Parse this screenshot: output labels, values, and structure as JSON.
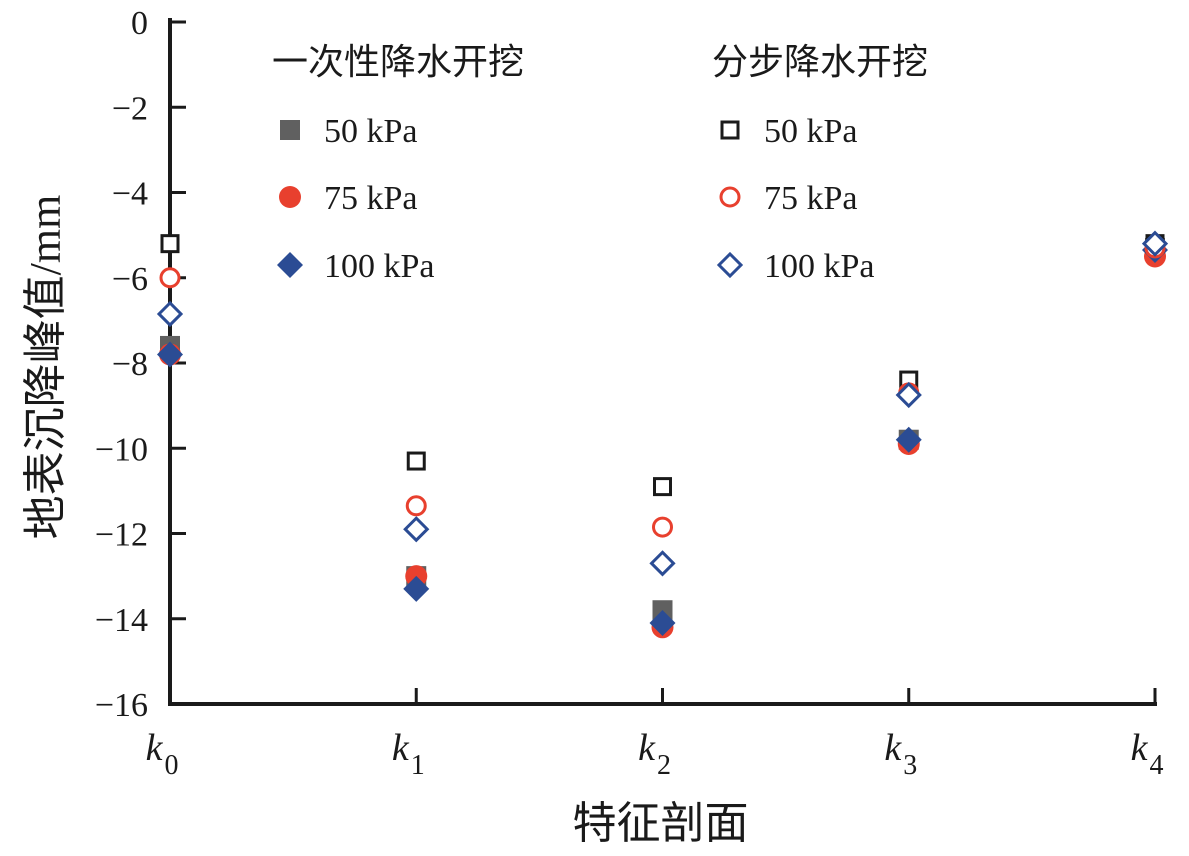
{
  "chart_data": {
    "type": "scatter",
    "title": "",
    "xlabel": "特征剖面",
    "ylabel": "地表沉降峰值/mm",
    "categories": [
      {
        "base": "k",
        "sub": "0"
      },
      {
        "base": "k",
        "sub": "1"
      },
      {
        "base": "k",
        "sub": "2"
      },
      {
        "base": "k",
        "sub": "3"
      },
      {
        "base": "k",
        "sub": "4"
      }
    ],
    "ylim": [
      -16,
      0
    ],
    "yticks": [
      0,
      -2,
      -4,
      -6,
      -8,
      -10,
      -12,
      -14,
      -16
    ],
    "ytick_labels": [
      "0",
      "−2",
      "−4",
      "−6",
      "−8",
      "−10",
      "−12",
      "−14",
      "−16"
    ],
    "grid": false,
    "legend": {
      "placement": "top",
      "groups": [
        {
          "title": "一次性降水开挖",
          "fill": "solid"
        },
        {
          "title": "分步降水开挖",
          "fill": "hollow"
        }
      ]
    },
    "series": [
      {
        "name": "50 kPa",
        "group": 0,
        "marker": "square",
        "color": "#606060",
        "fill": "solid",
        "values": [
          -7.6,
          -13.0,
          -13.8,
          -9.8,
          -5.3
        ]
      },
      {
        "name": "75 kPa",
        "group": 0,
        "marker": "circle",
        "color": "#e8402e",
        "fill": "solid",
        "values": [
          -7.8,
          -13.0,
          -14.2,
          -9.9,
          -5.5
        ]
      },
      {
        "name": "100 kPa",
        "group": 0,
        "marker": "diamond",
        "color": "#2b4c94",
        "fill": "solid",
        "values": [
          -7.8,
          -13.3,
          -14.1,
          -9.8,
          -5.35
        ]
      },
      {
        "name": "50 kPa",
        "group": 1,
        "marker": "square",
        "color": "#1a1a1a",
        "fill": "hollow",
        "values": [
          -5.2,
          -10.3,
          -10.9,
          -8.4,
          -5.2
        ]
      },
      {
        "name": "75 kPa",
        "group": 1,
        "marker": "circle",
        "color": "#e8402e",
        "fill": "hollow",
        "values": [
          -6.0,
          -11.35,
          -11.85,
          -8.7,
          -5.3
        ]
      },
      {
        "name": "100 kPa",
        "group": 1,
        "marker": "diamond",
        "color": "#2b4c94",
        "fill": "hollow",
        "values": [
          -6.85,
          -11.9,
          -12.7,
          -8.75,
          -5.2
        ]
      }
    ]
  }
}
